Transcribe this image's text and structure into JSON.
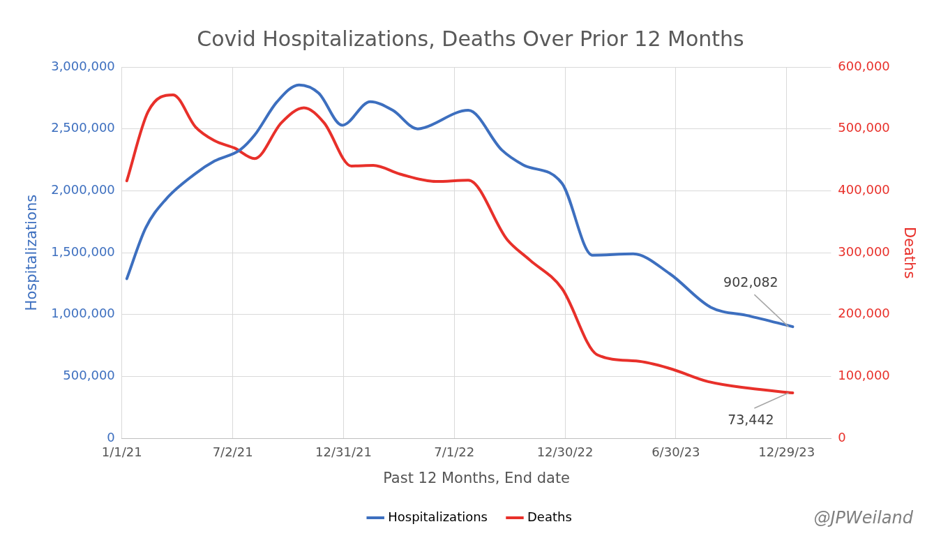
{
  "chart_data": {
    "type": "line",
    "title": "Covid Hospitalizations, Deaths Over Prior 12 Months",
    "xlabel": "Past 12 Months, End date",
    "ylabel": "Hospitalizations",
    "y2label": "Deaths",
    "x": [
      "2021-01-09",
      "2021-02-09",
      "2021-03-14",
      "2021-05-02",
      "2021-06-02",
      "2021-07-14",
      "2021-08-07",
      "2021-09-13",
      "2021-10-19",
      "2021-11-20",
      "2021-12-29",
      "2022-02-13",
      "2022-03-22",
      "2022-05-02",
      "2022-05-13",
      "2022-07-24",
      "2022-09-17",
      "2022-10-22",
      "2022-12-25",
      "2023-02-13",
      "2023-04-21",
      "2023-06-20",
      "2023-08-26",
      "2023-10-28",
      "2024-01-08"
    ],
    "series": [
      {
        "name": "Hospitalizations",
        "color": "#3d6fbf",
        "values": [
          1290000,
          1700000,
          1930000,
          2140000,
          2240000,
          2330000,
          2450000,
          2720000,
          2855000,
          2790000,
          2530000,
          2720000,
          2650000,
          2500000,
          2510000,
          2650000,
          2330000,
          2210000,
          2060000,
          1480000,
          1490000,
          1330000,
          1060000,
          990000,
          902082
        ],
        "value_labels": [
          null,
          null,
          null,
          null,
          null,
          null,
          null,
          null,
          null,
          null,
          null,
          null,
          null,
          null,
          null,
          null,
          null,
          null,
          null,
          null,
          null,
          null,
          null,
          null,
          "902,082"
        ]
      },
      {
        "name": "Deaths",
        "color": "#e8302a",
        "axis": "y2",
        "x": [
          "2021-01-09",
          "2021-02-13",
          "2021-03-26",
          "2021-05-02",
          "2021-06-02",
          "2021-07-05",
          "2021-08-07",
          "2021-09-20",
          "2021-10-27",
          "2021-11-29",
          "2022-01-13",
          "2022-02-18",
          "2022-04-03",
          "2022-06-01",
          "2022-07-24",
          "2022-09-26",
          "2022-11-01",
          "2022-12-25",
          "2023-02-21",
          "2023-04-26",
          "2023-06-20",
          "2023-08-21",
          "2023-10-28",
          "2024-01-08"
        ],
        "values": [
          416000,
          528000,
          555000,
          503000,
          481000,
          469000,
          452000,
          510000,
          534000,
          510000,
          440000,
          441000,
          427000,
          415000,
          417000,
          321000,
          289000,
          242000,
          135000,
          125000,
          113000,
          92000,
          81000,
          73442
        ],
        "value_labels": [
          null,
          null,
          null,
          null,
          null,
          null,
          null,
          null,
          null,
          null,
          null,
          null,
          null,
          null,
          null,
          null,
          null,
          null,
          null,
          null,
          null,
          null,
          null,
          "73,442"
        ]
      }
    ],
    "xlim": [
      "2021-01-01",
      "2024-03-11"
    ],
    "xticks": [
      {
        "value": "2021-01-01",
        "label": "1/1/21"
      },
      {
        "value": "2021-07-02",
        "label": "7/2/21"
      },
      {
        "value": "2021-12-31",
        "label": "12/31/21"
      },
      {
        "value": "2022-07-01",
        "label": "7/1/22"
      },
      {
        "value": "2022-12-30",
        "label": "12/30/22"
      },
      {
        "value": "2023-06-30",
        "label": "6/30/23"
      },
      {
        "value": "2023-12-29",
        "label": "12/29/23"
      }
    ],
    "ylim": [
      0,
      3000000
    ],
    "yticks": [
      {
        "value": 0,
        "label": "0"
      },
      {
        "value": 500000,
        "label": "500,000"
      },
      {
        "value": 1000000,
        "label": "1,000,000"
      },
      {
        "value": 1500000,
        "label": "1,500,000"
      },
      {
        "value": 2000000,
        "label": "2,000,000"
      },
      {
        "value": 2500000,
        "label": "2,500,000"
      },
      {
        "value": 3000000,
        "label": "3,000,000"
      }
    ],
    "y2lim": [
      0,
      600000
    ],
    "y2ticks": [
      {
        "value": 0,
        "label": "0"
      },
      {
        "value": 100000,
        "label": "100,000"
      },
      {
        "value": 200000,
        "label": "200,000"
      },
      {
        "value": 300000,
        "label": "300,000"
      },
      {
        "value": 400000,
        "label": "400,000"
      },
      {
        "value": 500000,
        "label": "500,000"
      },
      {
        "value": 600000,
        "label": "600,000"
      }
    ],
    "grid": true,
    "legend": "bottom",
    "marker": "none",
    "line_style": "solid",
    "annotations": [
      "@JPWeiland"
    ]
  }
}
